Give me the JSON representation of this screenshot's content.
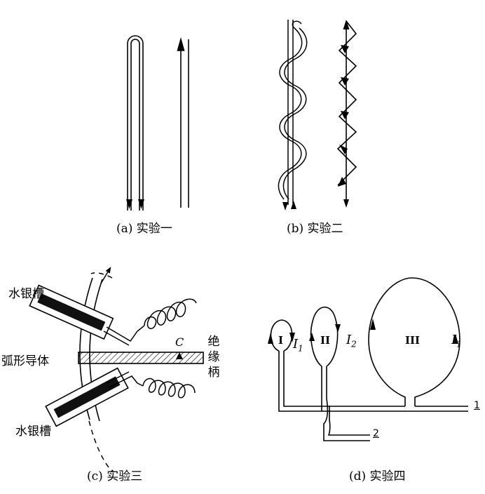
{
  "captions": {
    "a": "(a) 实验一",
    "b": "(b) 实验二",
    "c": "(c) 实验三",
    "d": "(d) 实验四"
  },
  "panel_c": {
    "mercury_trough_top": "水银槽",
    "mercury_trough_bottom": "水银槽",
    "arc_conductor": "弧形导体",
    "insulated_handle": "绝缘柄",
    "point_c": "C"
  },
  "panel_d": {
    "loop_1": "I",
    "loop_2": "II",
    "loop_3": "III",
    "current_1": "I",
    "current_1_sub": "1",
    "current_2": "I",
    "current_2_sub": "2",
    "current_3": "I",
    "current_3_sub": "1",
    "terminal_1": "1",
    "terminal_2": "2"
  }
}
